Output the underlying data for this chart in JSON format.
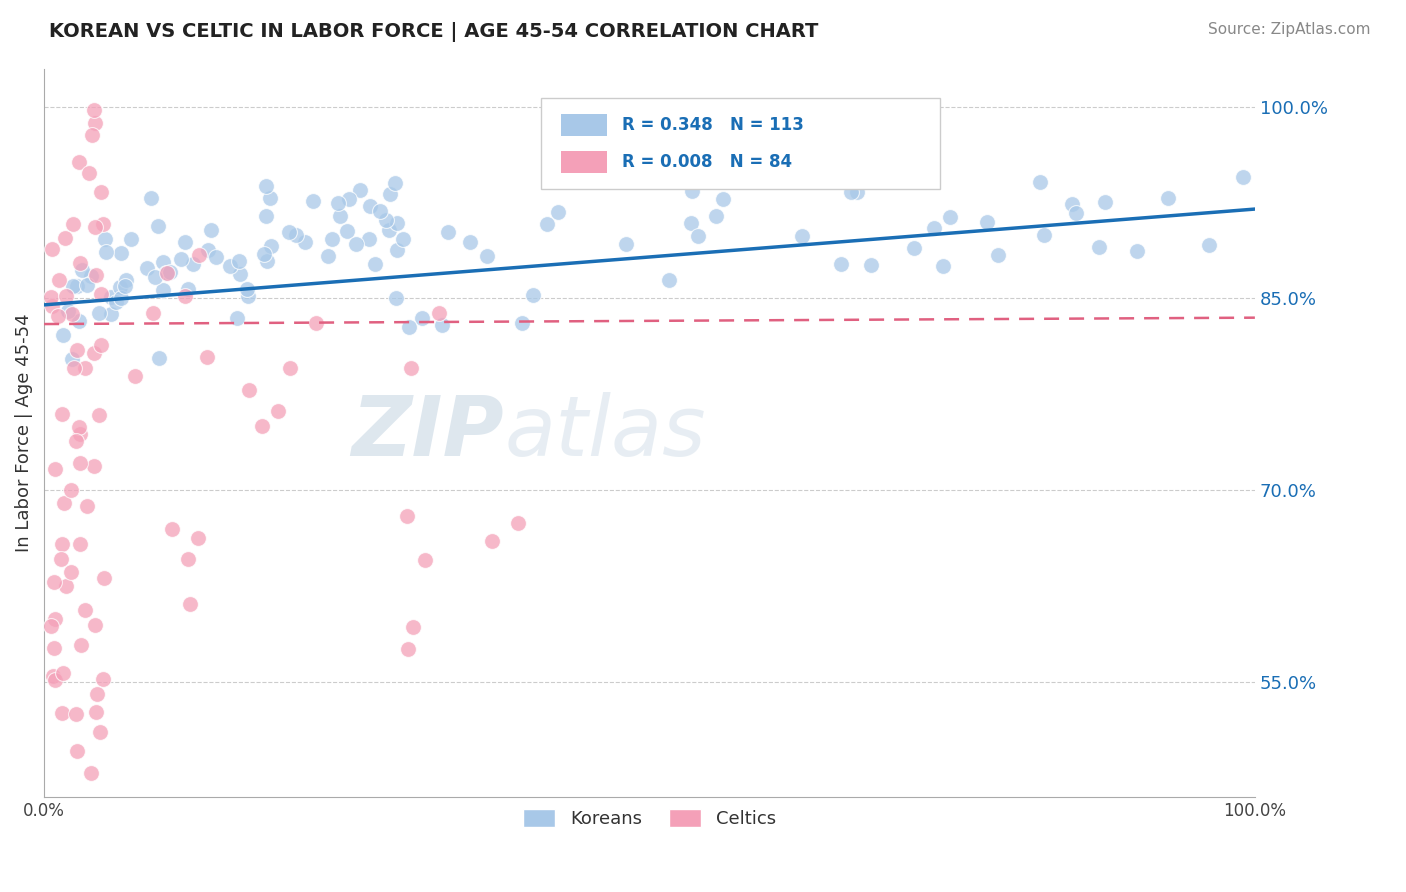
{
  "title": "KOREAN VS CELTIC IN LABOR FORCE | AGE 45-54 CORRELATION CHART",
  "source_text": "Source: ZipAtlas.com",
  "ylabel": "In Labor Force | Age 45-54",
  "xlim": [
    0.0,
    1.0
  ],
  "ylim": [
    0.46,
    1.03
  ],
  "ytick_values": [
    0.55,
    0.7,
    0.85,
    1.0
  ],
  "ytick_labels": [
    "55.0%",
    "70.0%",
    "85.0%",
    "100.0%"
  ],
  "xtick_values": [
    0.0,
    1.0
  ],
  "xtick_labels": [
    "0.0%",
    "100.0%"
  ],
  "blue_color": "#a8c8e8",
  "pink_color": "#f4a0b8",
  "blue_line_color": "#1a6eb5",
  "pink_line_color": "#e06080",
  "tick_label_color": "#1a6eb5",
  "R_blue": 0.348,
  "N_blue": 113,
  "R_pink": 0.008,
  "N_pink": 84,
  "watermark_text": "ZIPatlas",
  "watermark_color": "#d0dde8",
  "blue_line_start_y": 0.845,
  "blue_line_end_y": 0.92,
  "pink_line_start_y": 0.83,
  "pink_line_end_y": 0.835,
  "blue_seed": 42,
  "pink_seed": 99
}
